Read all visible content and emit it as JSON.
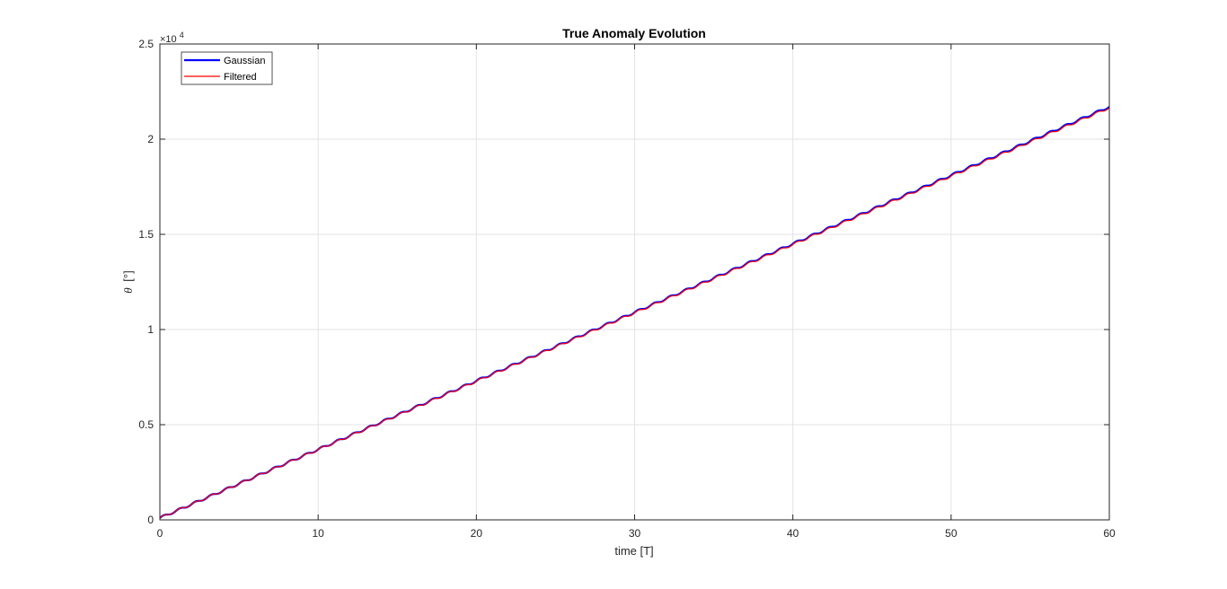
{
  "chart_data": {
    "type": "line",
    "title": "True Anomaly Evolution",
    "xlabel": "time [T]",
    "ylabel_symbol": "θ",
    "ylabel_unit": "[°]",
    "y_exponent_base": "×10",
    "y_exponent_power": "4",
    "xlim": [
      0,
      60
    ],
    "ylim": [
      0,
      25000
    ],
    "x_ticks": [
      0,
      10,
      20,
      30,
      40,
      50,
      60
    ],
    "x_tick_labels": [
      "0",
      "10",
      "20",
      "30",
      "40",
      "50",
      "60"
    ],
    "y_ticks": [
      0,
      5000,
      10000,
      15000,
      20000,
      25000
    ],
    "y_tick_labels": [
      "0",
      "0.5",
      "1",
      "1.5",
      "2",
      "2.5"
    ],
    "grid": true,
    "legend_position": "top-left",
    "series": [
      {
        "name": "Gaussian",
        "color": "#0000ff",
        "x": [
          0,
          60
        ],
        "y": [
          100,
          21700
        ],
        "note_shape": "linear growth with small periodic ripple, one per period"
      },
      {
        "name": "Filtered",
        "color": "#ff0000",
        "x": [
          0,
          60
        ],
        "y": [
          100,
          21650
        ]
      }
    ]
  }
}
